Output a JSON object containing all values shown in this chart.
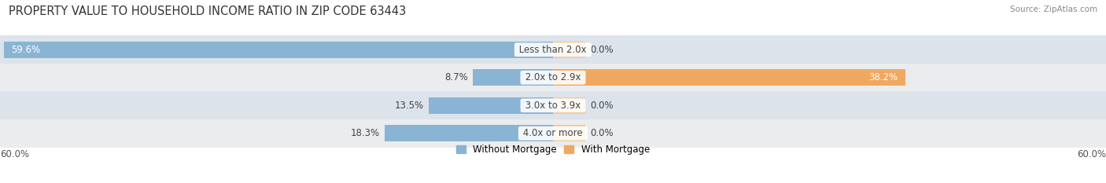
{
  "title": "PROPERTY VALUE TO HOUSEHOLD INCOME RATIO IN ZIP CODE 63443",
  "source": "Source: ZipAtlas.com",
  "categories": [
    "Less than 2.0x",
    "2.0x to 2.9x",
    "3.0x to 3.9x",
    "4.0x or more"
  ],
  "without_mortgage": [
    59.6,
    8.7,
    13.5,
    18.3
  ],
  "with_mortgage": [
    0.0,
    38.2,
    0.0,
    0.0
  ],
  "with_mortgage_small": [
    3.5,
    0.0,
    3.5,
    3.5
  ],
  "bar_color_blue": "#8ab4d4",
  "bar_color_orange": "#f0a860",
  "bar_color_orange_light": "#f5c898",
  "row_colors": [
    "#dde4ea",
    "#eaeaea"
  ],
  "axis_min": -60.0,
  "axis_max": 60.0,
  "axis_label_left": "60.0%",
  "axis_label_right": "60.0%",
  "title_fontsize": 10.5,
  "label_fontsize": 8.5,
  "tick_fontsize": 8.5,
  "source_fontsize": 7.5
}
